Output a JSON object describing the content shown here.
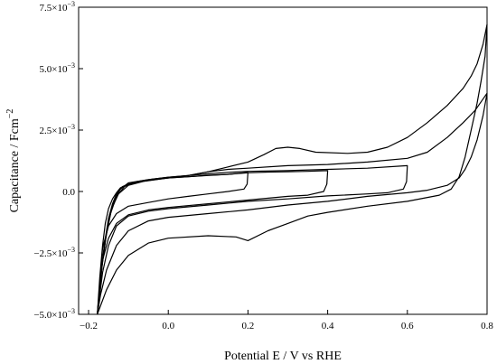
{
  "chart_data": {
    "type": "line",
    "title": "",
    "xlabel": "Potential E / V vs RHE",
    "ylabel": "Capacitance / Fcm",
    "ylabel_superscript": "−2",
    "xlim": [
      -0.225,
      0.8
    ],
    "ylim": [
      -0.005,
      0.0075
    ],
    "grid": false,
    "x_ticks": [
      {
        "value": -0.2,
        "label": "−0.2"
      },
      {
        "value": 0.0,
        "label": "0.0"
      },
      {
        "value": 0.2,
        "label": "0.2"
      },
      {
        "value": 0.4,
        "label": "0.4"
      },
      {
        "value": 0.6,
        "label": "0.6"
      },
      {
        "value": 0.8,
        "label": "0.8"
      }
    ],
    "y_ticks": [
      {
        "value": -0.005,
        "mantissa": "−5.0×10",
        "exp": "−3"
      },
      {
        "value": -0.0025,
        "mantissa": "−2.5×10",
        "exp": "−3"
      },
      {
        "value": 0.0,
        "mantissa": "0.0",
        "exp": ""
      },
      {
        "value": 0.0025,
        "mantissa": "2.5×10",
        "exp": "−3"
      },
      {
        "value": 0.005,
        "mantissa": "5.0×10",
        "exp": "−3"
      },
      {
        "value": 0.0075,
        "mantissa": "7.5×10",
        "exp": "−3"
      }
    ],
    "series": [
      {
        "anodic": [
          [
            -0.178,
            -0.005
          ],
          [
            -0.172,
            -0.0035
          ],
          [
            -0.165,
            -0.0022
          ],
          [
            -0.158,
            -0.0013
          ],
          [
            -0.15,
            -0.0007
          ],
          [
            -0.14,
            -0.0003
          ],
          [
            -0.13,
            -5e-05
          ],
          [
            -0.12,
            0.00015
          ],
          [
            -0.1,
            0.0003
          ],
          [
            -0.07,
            0.0004
          ],
          [
            -0.03,
            0.0005
          ],
          [
            0.0,
            0.00055
          ],
          [
            0.05,
            0.0006
          ],
          [
            0.1,
            0.00066
          ],
          [
            0.15,
            0.0007
          ],
          [
            0.2,
            0.00078
          ]
        ],
        "cathodic": [
          [
            0.2,
            0.00078
          ],
          [
            0.198,
            0.0003
          ],
          [
            0.19,
            0.0001
          ],
          [
            0.15,
            0.0
          ],
          [
            0.1,
            -0.0001
          ],
          [
            0.05,
            -0.0002
          ],
          [
            0.0,
            -0.0003
          ],
          [
            -0.05,
            -0.00045
          ],
          [
            -0.1,
            -0.0006
          ],
          [
            -0.13,
            -0.0009
          ],
          [
            -0.15,
            -0.0014
          ],
          [
            -0.165,
            -0.0023
          ],
          [
            -0.178,
            -0.005
          ]
        ]
      },
      {
        "anodic": [
          [
            -0.178,
            -0.005
          ],
          [
            -0.17,
            -0.0034
          ],
          [
            -0.16,
            -0.0021
          ],
          [
            -0.15,
            -0.0011
          ],
          [
            -0.14,
            -0.0005
          ],
          [
            -0.13,
            -0.0001
          ],
          [
            -0.115,
            0.0002
          ],
          [
            -0.09,
            0.00035
          ],
          [
            -0.05,
            0.00045
          ],
          [
            0.0,
            0.00055
          ],
          [
            0.05,
            0.0006
          ],
          [
            0.1,
            0.00065
          ],
          [
            0.15,
            0.0007
          ],
          [
            0.2,
            0.00076
          ],
          [
            0.25,
            0.00079
          ],
          [
            0.3,
            0.0008
          ],
          [
            0.35,
            0.00082
          ],
          [
            0.4,
            0.00085
          ]
        ],
        "cathodic": [
          [
            0.4,
            0.00085
          ],
          [
            0.398,
            0.0003
          ],
          [
            0.39,
            0.0
          ],
          [
            0.35,
            -0.00015
          ],
          [
            0.3,
            -0.0002
          ],
          [
            0.2,
            -0.00035
          ],
          [
            0.1,
            -0.0005
          ],
          [
            0.0,
            -0.00065
          ],
          [
            -0.05,
            -0.00075
          ],
          [
            -0.1,
            -0.00095
          ],
          [
            -0.13,
            -0.0013
          ],
          [
            -0.15,
            -0.0019
          ],
          [
            -0.165,
            -0.0028
          ],
          [
            -0.178,
            -0.005
          ]
        ]
      },
      {
        "anodic": [
          [
            -0.178,
            -0.005
          ],
          [
            -0.168,
            -0.0033
          ],
          [
            -0.158,
            -0.002
          ],
          [
            -0.148,
            -0.001
          ],
          [
            -0.135,
            -0.0003
          ],
          [
            -0.12,
            0.0001
          ],
          [
            -0.1,
            0.00035
          ],
          [
            -0.05,
            0.00048
          ],
          [
            0.0,
            0.00058
          ],
          [
            0.05,
            0.00065
          ],
          [
            0.1,
            0.00072
          ],
          [
            0.15,
            0.00078
          ],
          [
            0.2,
            0.00082
          ],
          [
            0.3,
            0.00085
          ],
          [
            0.4,
            0.0009
          ],
          [
            0.5,
            0.00095
          ],
          [
            0.6,
            0.00105
          ]
        ],
        "cathodic": [
          [
            0.6,
            0.00105
          ],
          [
            0.598,
            0.0004
          ],
          [
            0.59,
            0.0001
          ],
          [
            0.55,
            -5e-05
          ],
          [
            0.5,
            -0.0001
          ],
          [
            0.4,
            -0.00018
          ],
          [
            0.3,
            -0.0003
          ],
          [
            0.2,
            -0.0004
          ],
          [
            0.1,
            -0.00055
          ],
          [
            0.0,
            -0.0007
          ],
          [
            -0.05,
            -0.0008
          ],
          [
            -0.1,
            -0.001
          ],
          [
            -0.13,
            -0.0014
          ],
          [
            -0.15,
            -0.0022
          ],
          [
            -0.165,
            -0.0033
          ],
          [
            -0.178,
            -0.005
          ]
        ]
      },
      {
        "anodic": [
          [
            -0.178,
            -0.005
          ],
          [
            -0.168,
            -0.0032
          ],
          [
            -0.157,
            -0.0019
          ],
          [
            -0.145,
            -0.0009
          ],
          [
            -0.13,
            -0.0002
          ],
          [
            -0.11,
            0.0002
          ],
          [
            -0.08,
            0.0004
          ],
          [
            -0.04,
            0.0005
          ],
          [
            0.0,
            0.00058
          ],
          [
            0.05,
            0.00065
          ],
          [
            0.1,
            0.0008
          ],
          [
            0.15,
            0.0009
          ],
          [
            0.2,
            0.00095
          ],
          [
            0.3,
            0.00105
          ],
          [
            0.4,
            0.0011
          ],
          [
            0.5,
            0.0012
          ],
          [
            0.6,
            0.00135
          ],
          [
            0.65,
            0.0016
          ],
          [
            0.7,
            0.0022
          ],
          [
            0.74,
            0.0028
          ],
          [
            0.77,
            0.0033
          ],
          [
            0.8,
            0.004
          ]
        ],
        "cathodic": [
          [
            0.8,
            0.004
          ],
          [
            0.79,
            0.0031
          ],
          [
            0.775,
            0.0021
          ],
          [
            0.76,
            0.0014
          ],
          [
            0.745,
            0.0009
          ],
          [
            0.73,
            0.00055
          ],
          [
            0.7,
            0.00025
          ],
          [
            0.65,
            5e-05
          ],
          [
            0.6,
            -5e-05
          ],
          [
            0.5,
            -0.0002
          ],
          [
            0.4,
            -0.0004
          ],
          [
            0.3,
            -0.00055
          ],
          [
            0.2,
            -0.00075
          ],
          [
            0.1,
            -0.0009
          ],
          [
            0.0,
            -0.00105
          ],
          [
            -0.05,
            -0.0012
          ],
          [
            -0.1,
            -0.0016
          ],
          [
            -0.13,
            -0.0022
          ],
          [
            -0.155,
            -0.0032
          ],
          [
            -0.17,
            -0.0042
          ],
          [
            -0.178,
            -0.005
          ]
        ]
      },
      {
        "anodic": [
          [
            -0.178,
            -0.005
          ],
          [
            -0.166,
            -0.003
          ],
          [
            -0.155,
            -0.0017
          ],
          [
            -0.142,
            -0.0007
          ],
          [
            -0.125,
            -0.0001
          ],
          [
            -0.1,
            0.00025
          ],
          [
            -0.06,
            0.00042
          ],
          [
            0.0,
            0.00055
          ],
          [
            0.05,
            0.00065
          ],
          [
            0.1,
            0.0008
          ],
          [
            0.15,
            0.001
          ],
          [
            0.2,
            0.0012
          ],
          [
            0.24,
            0.0015
          ],
          [
            0.27,
            0.00175
          ],
          [
            0.3,
            0.0018
          ],
          [
            0.33,
            0.00175
          ],
          [
            0.37,
            0.0016
          ],
          [
            0.45,
            0.00155
          ],
          [
            0.5,
            0.0016
          ],
          [
            0.55,
            0.0018
          ],
          [
            0.6,
            0.0022
          ],
          [
            0.65,
            0.0028
          ],
          [
            0.7,
            0.0035
          ],
          [
            0.74,
            0.0042
          ],
          [
            0.76,
            0.0047
          ],
          [
            0.775,
            0.0052
          ],
          [
            0.79,
            0.006
          ],
          [
            0.8,
            0.0068
          ]
        ],
        "cathodic": [
          [
            0.8,
            0.0068
          ],
          [
            0.795,
            0.0055
          ],
          [
            0.785,
            0.0045
          ],
          [
            0.775,
            0.0036
          ],
          [
            0.76,
            0.0025
          ],
          [
            0.745,
            0.0014
          ],
          [
            0.73,
            0.0006
          ],
          [
            0.71,
            0.0001
          ],
          [
            0.68,
            -0.00015
          ],
          [
            0.6,
            -0.0004
          ],
          [
            0.5,
            -0.0006
          ],
          [
            0.4,
            -0.00085
          ],
          [
            0.35,
            -0.001
          ],
          [
            0.3,
            -0.0013
          ],
          [
            0.25,
            -0.0016
          ],
          [
            0.2,
            -0.002
          ],
          [
            0.17,
            -0.00185
          ],
          [
            0.1,
            -0.0018
          ],
          [
            0.0,
            -0.0019
          ],
          [
            -0.05,
            -0.0021
          ],
          [
            -0.1,
            -0.0026
          ],
          [
            -0.13,
            -0.0032
          ],
          [
            -0.155,
            -0.004
          ],
          [
            -0.178,
            -0.005
          ]
        ]
      }
    ]
  }
}
